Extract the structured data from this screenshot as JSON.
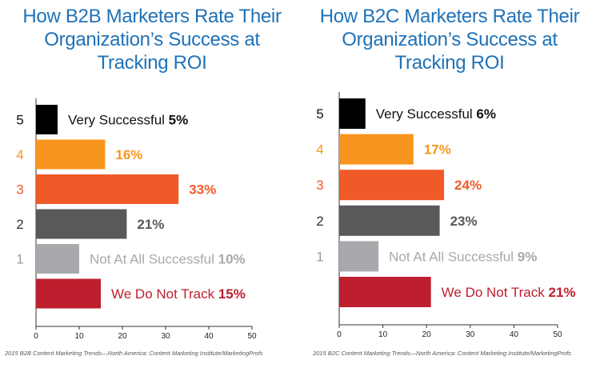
{
  "chart_data": [
    {
      "type": "bar",
      "orientation": "horizontal",
      "title": "How B2B Marketers Rate Their Organization’s Success at Tracking ROI",
      "categories": [
        "5",
        "4",
        "3",
        "2",
        "1",
        ""
      ],
      "category_labels": [
        "Very Successful",
        "",
        "",
        "",
        "Not At All Successful",
        "We Do Not Track"
      ],
      "values": [
        5,
        16,
        33,
        21,
        10,
        15
      ],
      "value_labels": [
        "5%",
        "16%",
        "33%",
        "21%",
        "10%",
        "15%"
      ],
      "colors": [
        "#000000",
        "#f7951e",
        "#f05a28",
        "#58595b",
        "#a7a9ac",
        "#be1e2d"
      ],
      "category_colors": [
        "#111111",
        "#f7951e",
        "#f05a28",
        "#333333",
        "#9a9a9a",
        "#111111"
      ],
      "label_colors": [
        "#111111",
        "#f7951e",
        "#f05a28",
        "#58595b",
        "#a7a9ac",
        "#be1e2d"
      ],
      "xticks": [
        0,
        10,
        20,
        30,
        40,
        50
      ],
      "xlim": [
        0,
        50
      ],
      "source": "2015 B2B Content Marketing Trends—North America: Content Marketing Institute/MarketingProfs"
    },
    {
      "type": "bar",
      "orientation": "horizontal",
      "title": "How B2C Marketers Rate Their Organization’s Success at Tracking ROI",
      "categories": [
        "5",
        "4",
        "3",
        "2",
        "1",
        ""
      ],
      "category_labels": [
        "Very Successful",
        "",
        "",
        "",
        "Not At All Successful",
        "We Do Not Track"
      ],
      "values": [
        6,
        17,
        24,
        23,
        9,
        21
      ],
      "value_labels": [
        "6%",
        "17%",
        "24%",
        "23%",
        "9%",
        "21%"
      ],
      "colors": [
        "#000000",
        "#f7951e",
        "#f05a28",
        "#58595b",
        "#a7a9ac",
        "#be1e2d"
      ],
      "category_colors": [
        "#111111",
        "#f7951e",
        "#f05a28",
        "#333333",
        "#9a9a9a",
        "#111111"
      ],
      "label_colors": [
        "#111111",
        "#f7951e",
        "#f05a28",
        "#58595b",
        "#a7a9ac",
        "#be1e2d"
      ],
      "xticks": [
        0,
        10,
        20,
        30,
        40,
        50
      ],
      "xlim": [
        0,
        50
      ],
      "source": "2015 B2C Content Marketing Trends—North America: Content Marketing Institute/MarketingProfs"
    }
  ]
}
